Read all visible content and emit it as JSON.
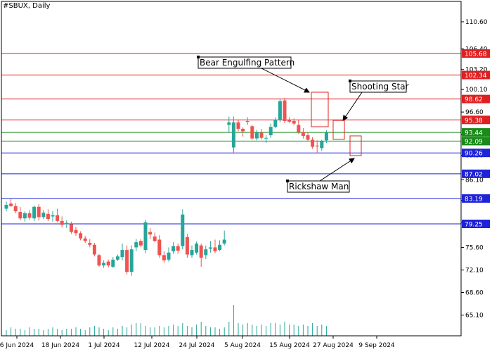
{
  "header": {
    "title": "#SBUX, Daily"
  },
  "chart_data": {
    "type": "candlestick",
    "title": "#SBUX, Daily",
    "ylim": [
      62,
      112
    ],
    "yticks": [
      110.6,
      106.4,
      103.2,
      100.1,
      96.6,
      93.1,
      89.9,
      86.1,
      82.9,
      79.4,
      75.6,
      72.1,
      68.6,
      65.1
    ],
    "xticks": [
      "6 Jun 2024",
      "18 Jun 2024",
      "1 Jul 2024",
      "12 Jul 2024",
      "24 Jul 2024",
      "5 Aug 2024",
      "15 Aug 2024",
      "27 Aug 2024",
      "9 Sep 2024"
    ],
    "grid": false,
    "levels": [
      {
        "label": "105.68",
        "value": 105.68,
        "color": "#e02020"
      },
      {
        "label": "102.34",
        "value": 102.34,
        "color": "#e02020"
      },
      {
        "label": "98.62",
        "value": 98.62,
        "color": "#e02020"
      },
      {
        "label": "95.38",
        "value": 95.38,
        "color": "#e02020"
      },
      {
        "label": "93.44",
        "value": 93.44,
        "color": "#1a8a1a"
      },
      {
        "label": "92.09",
        "value": 92.09,
        "color": "#1a8a1a"
      },
      {
        "label": "90.26",
        "value": 90.26,
        "color": "#1e22d8"
      },
      {
        "label": "87.02",
        "value": 87.02,
        "color": "#1e22d8"
      },
      {
        "label": "83.19",
        "value": 83.19,
        "color": "#1e22d8"
      },
      {
        "label": "79.25",
        "value": 79.25,
        "color": "#1e22d8"
      }
    ],
    "annotations": [
      {
        "text": "Bear Engulfing Pattern"
      },
      {
        "text": "Shooting Star"
      },
      {
        "text": "Rickshaw Man"
      }
    ],
    "candles": [
      {
        "o": 81.6,
        "h": 82.7,
        "l": 81.2,
        "c": 82.2
      },
      {
        "o": 82.4,
        "h": 83.1,
        "l": 81.9,
        "c": 82.0
      },
      {
        "o": 82.0,
        "h": 82.5,
        "l": 80.9,
        "c": 81.2
      },
      {
        "o": 81.1,
        "h": 81.9,
        "l": 79.8,
        "c": 80.1
      },
      {
        "o": 80.1,
        "h": 81.2,
        "l": 79.6,
        "c": 80.9
      },
      {
        "o": 80.9,
        "h": 81.4,
        "l": 79.9,
        "c": 80.2
      },
      {
        "o": 80.1,
        "h": 82.1,
        "l": 79.7,
        "c": 81.9
      },
      {
        "o": 81.9,
        "h": 82.3,
        "l": 79.8,
        "c": 80.3
      },
      {
        "o": 80.3,
        "h": 81.4,
        "l": 80.0,
        "c": 81.0
      },
      {
        "o": 80.8,
        "h": 81.5,
        "l": 79.7,
        "c": 80.0
      },
      {
        "o": 80.4,
        "h": 81.2,
        "l": 79.6,
        "c": 80.6
      },
      {
        "o": 80.6,
        "h": 81.6,
        "l": 79.5,
        "c": 79.7
      },
      {
        "o": 79.7,
        "h": 80.4,
        "l": 78.7,
        "c": 79.1
      },
      {
        "o": 79.2,
        "h": 79.8,
        "l": 78.6,
        "c": 79.4
      },
      {
        "o": 79.2,
        "h": 79.6,
        "l": 77.7,
        "c": 78.0
      },
      {
        "o": 78.3,
        "h": 78.8,
        "l": 77.4,
        "c": 77.8
      },
      {
        "o": 77.8,
        "h": 78.1,
        "l": 76.7,
        "c": 77.0
      },
      {
        "o": 77.0,
        "h": 77.4,
        "l": 76.3,
        "c": 76.6
      },
      {
        "o": 76.3,
        "h": 76.9,
        "l": 75.6,
        "c": 76.0
      },
      {
        "o": 76.0,
        "h": 76.3,
        "l": 74.2,
        "c": 74.5
      },
      {
        "o": 74.4,
        "h": 74.6,
        "l": 72.6,
        "c": 72.8
      },
      {
        "o": 72.8,
        "h": 73.6,
        "l": 72.4,
        "c": 73.2
      },
      {
        "o": 73.4,
        "h": 73.7,
        "l": 72.5,
        "c": 72.8
      },
      {
        "o": 72.6,
        "h": 74.1,
        "l": 72.4,
        "c": 73.7
      },
      {
        "o": 73.7,
        "h": 74.5,
        "l": 73.5,
        "c": 74.2
      },
      {
        "o": 74.1,
        "h": 76.2,
        "l": 73.6,
        "c": 75.2
      },
      {
        "o": 75.2,
        "h": 75.9,
        "l": 71.4,
        "c": 71.8
      },
      {
        "o": 71.8,
        "h": 75.9,
        "l": 71.2,
        "c": 75.3
      },
      {
        "o": 75.6,
        "h": 76.9,
        "l": 75.0,
        "c": 76.4
      },
      {
        "o": 76.6,
        "h": 76.9,
        "l": 75.6,
        "c": 75.9
      },
      {
        "o": 75.2,
        "h": 79.9,
        "l": 74.7,
        "c": 79.5
      },
      {
        "o": 78.0,
        "h": 78.6,
        "l": 76.9,
        "c": 77.6
      },
      {
        "o": 77.3,
        "h": 77.9,
        "l": 76.4,
        "c": 76.6
      },
      {
        "o": 76.8,
        "h": 77.5,
        "l": 74.0,
        "c": 74.4
      },
      {
        "o": 74.4,
        "h": 75.0,
        "l": 73.2,
        "c": 73.6
      },
      {
        "o": 73.7,
        "h": 75.6,
        "l": 73.4,
        "c": 74.8
      },
      {
        "o": 75.0,
        "h": 76.4,
        "l": 74.6,
        "c": 75.8
      },
      {
        "o": 75.8,
        "h": 76.2,
        "l": 74.6,
        "c": 75.1
      },
      {
        "o": 75.8,
        "h": 81.5,
        "l": 75.3,
        "c": 80.7
      },
      {
        "o": 77.2,
        "h": 77.7,
        "l": 74.0,
        "c": 74.5
      },
      {
        "o": 74.4,
        "h": 75.9,
        "l": 74.0,
        "c": 75.2
      },
      {
        "o": 74.8,
        "h": 76.5,
        "l": 74.5,
        "c": 76.2
      },
      {
        "o": 75.9,
        "h": 76.2,
        "l": 72.6,
        "c": 74.0
      },
      {
        "o": 74.4,
        "h": 75.9,
        "l": 73.8,
        "c": 75.3
      },
      {
        "o": 75.4,
        "h": 76.6,
        "l": 74.8,
        "c": 75.6
      },
      {
        "o": 75.6,
        "h": 76.8,
        "l": 74.7,
        "c": 75.0
      },
      {
        "o": 75.2,
        "h": 76.7,
        "l": 75.0,
        "c": 76.0
      },
      {
        "o": 76.2,
        "h": 78.2,
        "l": 75.9,
        "c": 76.8
      },
      {
        "o": 94.6,
        "h": 95.9,
        "l": 93.4,
        "c": 95.0
      },
      {
        "o": 91.1,
        "h": 95.9,
        "l": 90.3,
        "c": 95.0
      },
      {
        "o": 95.0,
        "h": 95.4,
        "l": 93.6,
        "c": 94.0
      },
      {
        "o": 94.0,
        "h": 94.2,
        "l": 92.8,
        "c": 93.6
      },
      {
        "o": 95.2,
        "h": 95.8,
        "l": 94.6,
        "c": 95.2
      },
      {
        "o": 94.4,
        "h": 94.6,
        "l": 92.3,
        "c": 92.5
      },
      {
        "o": 92.5,
        "h": 93.8,
        "l": 92.2,
        "c": 93.4
      },
      {
        "o": 93.4,
        "h": 94.0,
        "l": 92.3,
        "c": 92.6
      },
      {
        "o": 92.5,
        "h": 93.0,
        "l": 91.8,
        "c": 92.6
      },
      {
        "o": 93.0,
        "h": 94.8,
        "l": 92.6,
        "c": 94.3
      },
      {
        "o": 94.3,
        "h": 95.8,
        "l": 94.1,
        "c": 95.4
      },
      {
        "o": 95.4,
        "h": 98.6,
        "l": 95.0,
        "c": 98.3
      },
      {
        "o": 98.4,
        "h": 98.8,
        "l": 94.9,
        "c": 95.2
      },
      {
        "o": 95.4,
        "h": 95.8,
        "l": 94.9,
        "c": 95.1
      },
      {
        "o": 95.2,
        "h": 95.6,
        "l": 94.5,
        "c": 94.8
      },
      {
        "o": 94.6,
        "h": 95.4,
        "l": 93.2,
        "c": 93.5
      },
      {
        "o": 93.5,
        "h": 94.1,
        "l": 92.5,
        "c": 92.9
      },
      {
        "o": 93.0,
        "h": 93.5,
        "l": 92.1,
        "c": 92.3
      },
      {
        "o": 92.3,
        "h": 92.7,
        "l": 90.9,
        "c": 91.2
      },
      {
        "o": 91.4,
        "h": 92.2,
        "l": 90.2,
        "c": 91.3
      },
      {
        "o": 91.0,
        "h": 92.3,
        "l": 90.6,
        "c": 92.1
      },
      {
        "o": 92.2,
        "h": 93.8,
        "l": 91.8,
        "c": 93.4
      }
    ],
    "volume": [
      4,
      6,
      5,
      5,
      4,
      6,
      5,
      5,
      4,
      5,
      6,
      5,
      4,
      5,
      5,
      6,
      5,
      4,
      6,
      7,
      6,
      5,
      4,
      6,
      5,
      7,
      6,
      8,
      9,
      9,
      7,
      6,
      6,
      7,
      6,
      7,
      8,
      7,
      9,
      7,
      6,
      8,
      10,
      7,
      6,
      6,
      5,
      6,
      10,
      22,
      9,
      8,
      9,
      8,
      7,
      8,
      7,
      9,
      9,
      8,
      10,
      8,
      8,
      7,
      8,
      7,
      9,
      7,
      8,
      7
    ]
  }
}
